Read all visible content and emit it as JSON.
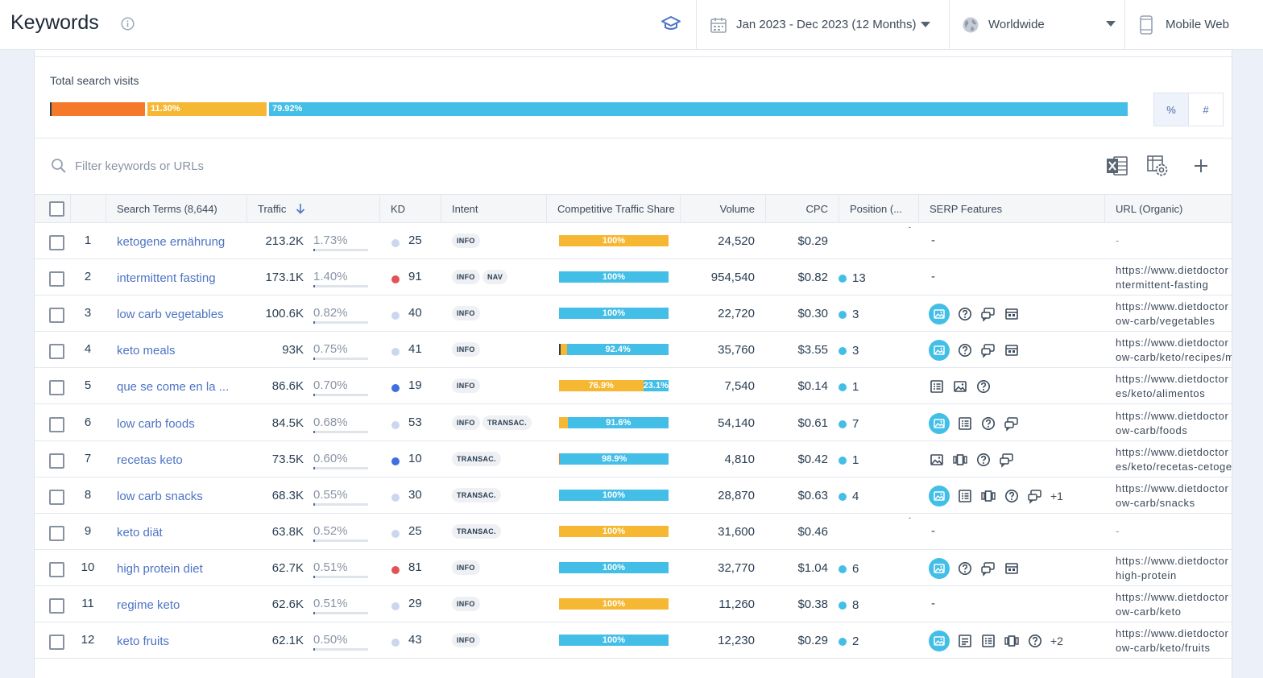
{
  "header": {
    "title": "Keywords",
    "date_range": "Jan 2023 - Dec 2023 (12 Months)",
    "region": "Worldwide",
    "device": "Mobile Web"
  },
  "colors": {
    "orange": "#f5792a",
    "yellow": "#f6b833",
    "cyan": "#43bee6",
    "link": "#4d74c4",
    "kd_red": "#e15456",
    "kd_blue": "#3f6fe0",
    "kd_light": "#cbd7ee"
  },
  "visits": {
    "label": "Total search visits",
    "segments": [
      {
        "label": "",
        "percent": 8.8,
        "color": "#f5792a"
      },
      {
        "label": "11.30%",
        "percent": 11.3,
        "color": "#f6b833"
      },
      {
        "label": "79.92%",
        "percent": 79.92,
        "color": "#43bee6"
      }
    ],
    "toggle": {
      "percent": "%",
      "count": "#"
    }
  },
  "filter": {
    "placeholder": "Filter keywords or URLs"
  },
  "table": {
    "columns": {
      "search_terms": "Search Terms (8,644)",
      "traffic": "Traffic",
      "kd": "KD",
      "intent": "Intent",
      "share": "Competitive Traffic Share",
      "volume": "Volume",
      "cpc": "CPC",
      "position": "Position (...",
      "serp": "SERP Features",
      "url": "URL (Organic)"
    },
    "rows": [
      {
        "num": "1",
        "keyword": "ketogene ernährung",
        "traffic": "213.2K",
        "traffic_pct": "1.73%",
        "pct_value": 1.73,
        "kd": "25",
        "kd_color": "#cbd7ee",
        "intents": [
          "INFO"
        ],
        "share": [
          {
            "label": "100%",
            "value": 100,
            "color": "#f6b833"
          }
        ],
        "volume": "24,520",
        "cpc": "$0.29",
        "position": "",
        "serp": [],
        "url1": "",
        "url2": "",
        "tick": "-"
      },
      {
        "num": "2",
        "keyword": "intermittent fasting",
        "traffic": "173.1K",
        "traffic_pct": "1.40%",
        "pct_value": 1.4,
        "kd": "91",
        "kd_color": "#e15456",
        "intents": [
          "INFO",
          "NAV"
        ],
        "share": [
          {
            "label": "100%",
            "value": 100,
            "color": "#43bee6"
          }
        ],
        "volume": "954,540",
        "cpc": "$0.82",
        "position": "13",
        "serp": [],
        "url1": "https://www.dietdoctor",
        "url2": "ntermittent-fasting",
        "tick": ""
      },
      {
        "num": "3",
        "keyword": "low carb vegetables",
        "traffic": "100.6K",
        "traffic_pct": "0.82%",
        "pct_value": 0.82,
        "kd": "40",
        "kd_color": "#cbd7ee",
        "intents": [
          "INFO"
        ],
        "share": [
          {
            "label": "100%",
            "value": 100,
            "color": "#43bee6"
          }
        ],
        "volume": "22,720",
        "cpc": "$0.30",
        "position": "3",
        "serp": [
          "image-pack-icon",
          "faq-icon",
          "reviews-icon",
          "site-links-icon"
        ],
        "url1": "https://www.dietdoctor",
        "url2": "ow-carb/vegetables",
        "tick": ""
      },
      {
        "num": "4",
        "keyword": "keto meals",
        "traffic": "93K",
        "traffic_pct": "0.75%",
        "pct_value": 0.75,
        "kd": "41",
        "kd_color": "#cbd7ee",
        "intents": [
          "INFO"
        ],
        "share": [
          {
            "label": "",
            "value": 1.2,
            "color": "#2a3e52"
          },
          {
            "label": "",
            "value": 6.4,
            "color": "#f6b833"
          },
          {
            "label": "92.4%",
            "value": 92.4,
            "color": "#43bee6"
          }
        ],
        "volume": "35,760",
        "cpc": "$3.55",
        "position": "3",
        "serp": [
          "image-pack-icon",
          "faq-icon",
          "reviews-icon",
          "site-links-icon"
        ],
        "url1": "https://www.dietdoctor",
        "url2": "ow-carb/keto/recipes/m",
        "tick": ""
      },
      {
        "num": "5",
        "keyword": "que se come en la ...",
        "traffic": "86.6K",
        "traffic_pct": "0.70%",
        "pct_value": 0.7,
        "kd": "19",
        "kd_color": "#3f6fe0",
        "intents": [
          "INFO"
        ],
        "share": [
          {
            "label": "76.9%",
            "value": 76.9,
            "color": "#f6b833"
          },
          {
            "label": "23.1%",
            "value": 23.1,
            "color": "#43bee6"
          }
        ],
        "volume": "7,540",
        "cpc": "$0.14",
        "position": "1",
        "serp": [
          "featured-list-icon",
          "image-icon",
          "faq-icon"
        ],
        "url1": "https://www.dietdoctor",
        "url2": "es/keto/alimentos",
        "tick": ""
      },
      {
        "num": "6",
        "keyword": "low carb foods",
        "traffic": "84.5K",
        "traffic_pct": "0.68%",
        "pct_value": 0.68,
        "kd": "53",
        "kd_color": "#cbd7ee",
        "intents": [
          "INFO",
          "TRANSAC."
        ],
        "share": [
          {
            "label": "",
            "value": 8.4,
            "color": "#f6b833"
          },
          {
            "label": "91.6%",
            "value": 91.6,
            "color": "#43bee6"
          }
        ],
        "volume": "54,140",
        "cpc": "$0.61",
        "position": "7",
        "serp": [
          "image-pack-icon",
          "featured-list-icon",
          "faq-icon",
          "reviews-icon"
        ],
        "url1": "https://www.dietdoctor",
        "url2": "ow-carb/foods",
        "tick": ""
      },
      {
        "num": "7",
        "keyword": "recetas keto",
        "traffic": "73.5K",
        "traffic_pct": "0.60%",
        "pct_value": 0.6,
        "kd": "10",
        "kd_color": "#3f6fe0",
        "intents": [
          "TRANSAC."
        ],
        "share": [
          {
            "label": "",
            "value": 1.1,
            "color": "#f5792a"
          },
          {
            "label": "98.9%",
            "value": 98.9,
            "color": "#43bee6"
          }
        ],
        "volume": "4,810",
        "cpc": "$0.42",
        "position": "1",
        "serp": [
          "image-icon",
          "carousel-icon",
          "faq-icon",
          "reviews-icon"
        ],
        "url1": "https://www.dietdoctor",
        "url2": "es/keto/recetas-cetoge",
        "tick": ""
      },
      {
        "num": "8",
        "keyword": "low carb snacks",
        "traffic": "68.3K",
        "traffic_pct": "0.55%",
        "pct_value": 0.55,
        "kd": "30",
        "kd_color": "#cbd7ee",
        "intents": [
          "TRANSAC."
        ],
        "share": [
          {
            "label": "100%",
            "value": 100,
            "color": "#43bee6"
          }
        ],
        "volume": "28,870",
        "cpc": "$0.63",
        "position": "4",
        "serp": [
          "image-pack-icon",
          "featured-list-icon",
          "carousel-icon",
          "faq-icon",
          "reviews-icon"
        ],
        "serp_more": "+1",
        "url1": "https://www.dietdoctor",
        "url2": "ow-carb/snacks",
        "tick": ""
      },
      {
        "num": "9",
        "keyword": "keto diät",
        "traffic": "63.8K",
        "traffic_pct": "0.52%",
        "pct_value": 0.52,
        "kd": "25",
        "kd_color": "#cbd7ee",
        "intents": [
          "TRANSAC."
        ],
        "share": [
          {
            "label": "100%",
            "value": 100,
            "color": "#f6b833"
          }
        ],
        "volume": "31,600",
        "cpc": "$0.46",
        "position": "",
        "serp": [],
        "url1": "",
        "url2": "",
        "tick": "-"
      },
      {
        "num": "10",
        "keyword": "high protein diet",
        "traffic": "62.7K",
        "traffic_pct": "0.51%",
        "pct_value": 0.51,
        "kd": "81",
        "kd_color": "#e15456",
        "intents": [
          "INFO"
        ],
        "share": [
          {
            "label": "100%",
            "value": 100,
            "color": "#43bee6"
          }
        ],
        "volume": "32,770",
        "cpc": "$1.04",
        "position": "6",
        "serp": [
          "image-pack-icon",
          "faq-icon",
          "reviews-icon",
          "site-links-icon"
        ],
        "url1": "https://www.dietdoctor",
        "url2": "high-protein",
        "tick": ""
      },
      {
        "num": "11",
        "keyword": "regime keto",
        "traffic": "62.6K",
        "traffic_pct": "0.51%",
        "pct_value": 0.51,
        "kd": "29",
        "kd_color": "#cbd7ee",
        "intents": [
          "INFO"
        ],
        "share": [
          {
            "label": "100%",
            "value": 100,
            "color": "#f6b833"
          }
        ],
        "volume": "11,260",
        "cpc": "$0.38",
        "position": "8",
        "serp": [],
        "url1": "https://www.dietdoctor",
        "url2": "ow-carb/keto",
        "tick": ""
      },
      {
        "num": "12",
        "keyword": "keto fruits",
        "traffic": "62.1K",
        "traffic_pct": "0.50%",
        "pct_value": 0.5,
        "kd": "43",
        "kd_color": "#cbd7ee",
        "intents": [
          "INFO"
        ],
        "share": [
          {
            "label": "100%",
            "value": 100,
            "color": "#43bee6"
          }
        ],
        "volume": "12,230",
        "cpc": "$0.29",
        "position": "2",
        "serp": [
          "image-pack-icon",
          "featured-snippet-icon",
          "featured-list-icon",
          "carousel-icon",
          "faq-icon"
        ],
        "serp_more": "+2",
        "url1": "https://www.dietdoctor",
        "url2": "ow-carb/keto/fruits",
        "tick": ""
      }
    ]
  }
}
